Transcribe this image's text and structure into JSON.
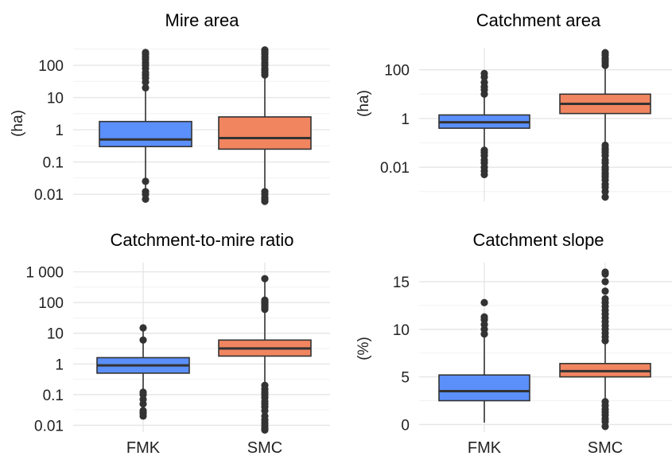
{
  "colors": {
    "FMK": "#5b8ff9",
    "SMC": "#f08560"
  },
  "chart_data": [
    {
      "type": "boxplot",
      "title": "Mire area",
      "ylabel": "(ha)",
      "scale": "log",
      "ylim": [
        0.006,
        350
      ],
      "yticks": [
        0.01,
        0.1,
        1,
        10,
        100
      ],
      "ytick_labels": [
        "0.01",
        "0.1",
        "1",
        "10",
        "100"
      ],
      "categories": [
        "FMK",
        "SMC"
      ],
      "boxes": [
        {
          "name": "FMK",
          "q1": 0.3,
          "median": 0.5,
          "q3": 1.8,
          "whisker_low": 0.007,
          "whisker_high": 250,
          "outliers": [
            0.007,
            0.01,
            0.012,
            0.025,
            20,
            30,
            40,
            50,
            60,
            80,
            100,
            120,
            150,
            180,
            220,
            250
          ]
        },
        {
          "name": "SMC",
          "q1": 0.25,
          "median": 0.55,
          "q3": 2.5,
          "whisker_low": 0.006,
          "whisker_high": 300,
          "outliers": [
            0.006,
            0.007,
            0.008,
            0.01,
            0.012,
            50,
            60,
            70,
            80,
            100,
            120,
            150,
            180,
            220,
            260,
            300
          ]
        }
      ]
    },
    {
      "type": "boxplot",
      "title": "Catchment area",
      "ylabel": "(ha)",
      "scale": "log",
      "ylim": [
        0.0004,
        800
      ],
      "yticks": [
        0.01,
        1,
        100
      ],
      "ytick_labels": [
        "0.01",
        "1",
        "100"
      ],
      "categories": [
        "FMK",
        "SMC"
      ],
      "boxes": [
        {
          "name": "FMK",
          "q1": 0.4,
          "median": 0.7,
          "q3": 1.4,
          "whisker_low": 0.005,
          "whisker_high": 70,
          "outliers": [
            0.005,
            0.007,
            0.01,
            0.015,
            0.02,
            0.03,
            0.04,
            0.05,
            10,
            15,
            20,
            30,
            50,
            70
          ]
        },
        {
          "name": "SMC",
          "q1": 1.6,
          "median": 4,
          "q3": 10,
          "whisker_low": 0.0006,
          "whisker_high": 500,
          "outliers": [
            0.0006,
            0.001,
            0.0015,
            0.002,
            0.003,
            0.004,
            0.005,
            0.006,
            0.008,
            0.01,
            0.015,
            0.02,
            0.03,
            0.04,
            0.05,
            0.06,
            0.08,
            150,
            200,
            250,
            300,
            400,
            500
          ]
        }
      ]
    },
    {
      "type": "boxplot",
      "title": "Catchment-to-mire ratio",
      "ylabel": "",
      "scale": "log",
      "ylim": [
        0.006,
        2000
      ],
      "yticks": [
        0.01,
        0.1,
        1,
        10,
        100,
        1000
      ],
      "ytick_labels": [
        "0.01",
        "0.1",
        "1",
        "10",
        "100",
        "1 000"
      ],
      "categories": [
        "FMK",
        "SMC"
      ],
      "boxes": [
        {
          "name": "FMK",
          "q1": 0.5,
          "median": 0.9,
          "q3": 1.6,
          "whisker_low": 0.02,
          "whisker_high": 15,
          "outliers": [
            0.02,
            0.025,
            0.03,
            0.05,
            0.07,
            0.1,
            0.12,
            6,
            15
          ]
        },
        {
          "name": "SMC",
          "q1": 1.8,
          "median": 3.2,
          "q3": 6,
          "whisker_low": 0.007,
          "whisker_high": 600,
          "outliers": [
            0.007,
            0.008,
            0.01,
            0.012,
            0.015,
            0.02,
            0.03,
            0.04,
            0.05,
            0.06,
            0.08,
            0.1,
            0.12,
            0.15,
            0.2,
            60,
            70,
            80,
            90,
            100,
            110,
            120,
            600
          ]
        }
      ]
    },
    {
      "type": "boxplot",
      "title": "Catchment slope",
      "ylabel": "(%)",
      "scale": "linear",
      "ylim": [
        -0.8,
        17
      ],
      "yticks": [
        0,
        5,
        10,
        15
      ],
      "ytick_labels": [
        "0",
        "5",
        "10",
        "15"
      ],
      "categories": [
        "FMK",
        "SMC"
      ],
      "boxes": [
        {
          "name": "FMK",
          "q1": 2.5,
          "median": 3.5,
          "q3": 5.2,
          "whisker_low": 0.2,
          "whisker_high": 9.5,
          "outliers": [
            9.5,
            10,
            10.5,
            11,
            11.3,
            12.8
          ]
        },
        {
          "name": "SMC",
          "q1": 5.0,
          "median": 5.6,
          "q3": 6.4,
          "whisker_low": 2.7,
          "whisker_high": 8.6,
          "outliers": [
            -0.2,
            0.3,
            0.6,
            1.0,
            1.3,
            1.6,
            2.0,
            2.4,
            8.8,
            9.2,
            9.6,
            10,
            10.4,
            10.8,
            11.2,
            11.6,
            12.0,
            12.4,
            12.8,
            13.2,
            14.0,
            15.0,
            15.8,
            16.0
          ]
        }
      ]
    }
  ]
}
